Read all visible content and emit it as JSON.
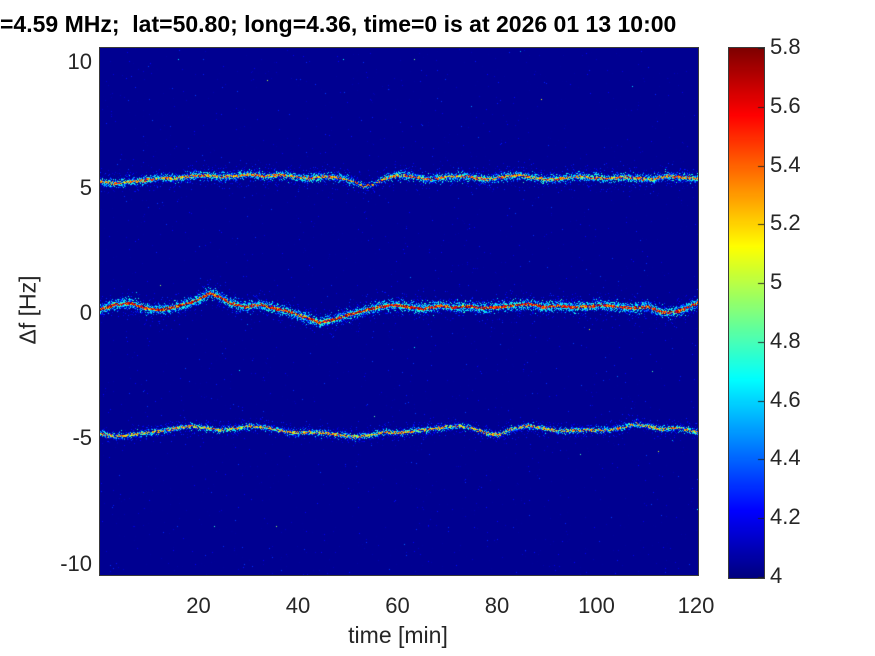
{
  "chart_data": {
    "type": "heatmap",
    "title": "=4.59 MHz;  lat=50.80; long=4.36, time=0 is at 2026 01 13 10:00",
    "xlabel": "time [min]",
    "ylabel": "Δf [Hz]",
    "x_range": [
      0,
      120.2
    ],
    "y_range": [
      -10.4,
      10.6
    ],
    "x_tick_values": [
      20,
      40,
      60,
      80,
      100,
      120
    ],
    "x_tick_labels": [
      "20",
      "40",
      "60",
      "80",
      "100",
      "120"
    ],
    "y_tick_values": [
      10,
      5,
      0,
      -5,
      -10
    ],
    "y_tick_labels": [
      "10",
      "5",
      "0",
      "-5",
      "-10"
    ],
    "grid": false,
    "colorbar": {
      "min": 4,
      "max": 5.8,
      "tick_values": [
        4,
        4.2,
        4.4,
        4.6,
        4.8,
        5,
        5.2,
        5.4,
        5.6,
        5.8
      ],
      "tick_labels": [
        "4",
        "4.2",
        "4.4",
        "4.6",
        "4.8",
        "5",
        "5.2",
        "5.4",
        "5.6",
        "5.8"
      ],
      "colormap": "jet"
    },
    "background_value": 4.03,
    "noise": {
      "faint_dots": 2600,
      "bright_dots": 26,
      "seed": 42
    },
    "traces": [
      {
        "name": "upper-doppler-trace",
        "t": [
          0,
          3,
          6,
          9,
          12,
          15,
          18,
          21,
          24,
          27,
          30,
          33,
          36,
          39,
          42,
          45,
          48,
          51,
          53,
          55,
          57,
          60,
          63,
          66,
          69,
          72,
          75,
          78,
          81,
          84,
          87,
          90,
          93,
          96,
          99,
          102,
          105,
          108,
          111,
          114,
          117,
          120
        ],
        "f": [
          5.3,
          5.22,
          5.28,
          5.35,
          5.45,
          5.42,
          5.5,
          5.55,
          5.48,
          5.52,
          5.58,
          5.5,
          5.55,
          5.48,
          5.42,
          5.5,
          5.45,
          5.28,
          5.12,
          5.2,
          5.42,
          5.55,
          5.48,
          5.38,
          5.45,
          5.52,
          5.45,
          5.38,
          5.48,
          5.55,
          5.45,
          5.38,
          5.42,
          5.5,
          5.45,
          5.4,
          5.48,
          5.42,
          5.38,
          5.52,
          5.45,
          5.42
        ],
        "density": 9,
        "sigma": 2.1,
        "hot_prob": 0.4,
        "hot_min": 4.9,
        "hot_max": 5.55,
        "gap": [
          51,
          57,
          0.35
        ]
      },
      {
        "name": "center-doppler-trace",
        "t": [
          0,
          3,
          6,
          9,
          12,
          15,
          18,
          20,
          22,
          24,
          26,
          29,
          32,
          35,
          38,
          41,
          44,
          47,
          50,
          53,
          56,
          59,
          62,
          65,
          68,
          71,
          74,
          77,
          80,
          83,
          86,
          89,
          92,
          95,
          98,
          101,
          104,
          107,
          110,
          113,
          116,
          120
        ],
        "f": [
          0.2,
          0.4,
          0.45,
          0.25,
          0.18,
          0.3,
          0.45,
          0.62,
          0.85,
          0.7,
          0.45,
          0.3,
          0.38,
          0.25,
          0.1,
          -0.1,
          -0.32,
          -0.2,
          0.0,
          0.15,
          0.3,
          0.38,
          0.3,
          0.22,
          0.35,
          0.28,
          0.32,
          0.25,
          0.3,
          0.35,
          0.42,
          0.3,
          0.35,
          0.28,
          0.32,
          0.38,
          0.3,
          0.25,
          0.32,
          0.07,
          0.12,
          0.45
        ],
        "density": 13,
        "sigma": 2.5,
        "hot_prob": 0.62,
        "hot_min": 5.0,
        "hot_max": 5.8,
        "gap": null
      },
      {
        "name": "lower-doppler-trace",
        "t": [
          0,
          3,
          6,
          9,
          12,
          15,
          18,
          21,
          24,
          27,
          30,
          33,
          36,
          39,
          42,
          45,
          48,
          51,
          54,
          57,
          60,
          63,
          66,
          69,
          72,
          75,
          78,
          80,
          83,
          86,
          89,
          92,
          95,
          98,
          101,
          104,
          107,
          110,
          113,
          116,
          120
        ],
        "f": [
          -4.75,
          -4.85,
          -4.8,
          -4.72,
          -4.65,
          -4.55,
          -4.45,
          -4.52,
          -4.62,
          -4.55,
          -4.45,
          -4.5,
          -4.62,
          -4.72,
          -4.68,
          -4.72,
          -4.8,
          -4.88,
          -4.82,
          -4.7,
          -4.72,
          -4.65,
          -4.58,
          -4.5,
          -4.44,
          -4.55,
          -4.75,
          -4.8,
          -4.55,
          -4.44,
          -4.55,
          -4.65,
          -4.62,
          -4.6,
          -4.63,
          -4.55,
          -4.38,
          -4.45,
          -4.58,
          -4.52,
          -4.68
        ],
        "density": 6,
        "sigma": 1.5,
        "hot_prob": 0.32,
        "hot_min": 4.9,
        "hot_max": 5.45,
        "gap": null
      }
    ],
    "colors": {
      "title_text": "#000000",
      "tick_text": "#262626",
      "background_low": "#00008b"
    }
  }
}
